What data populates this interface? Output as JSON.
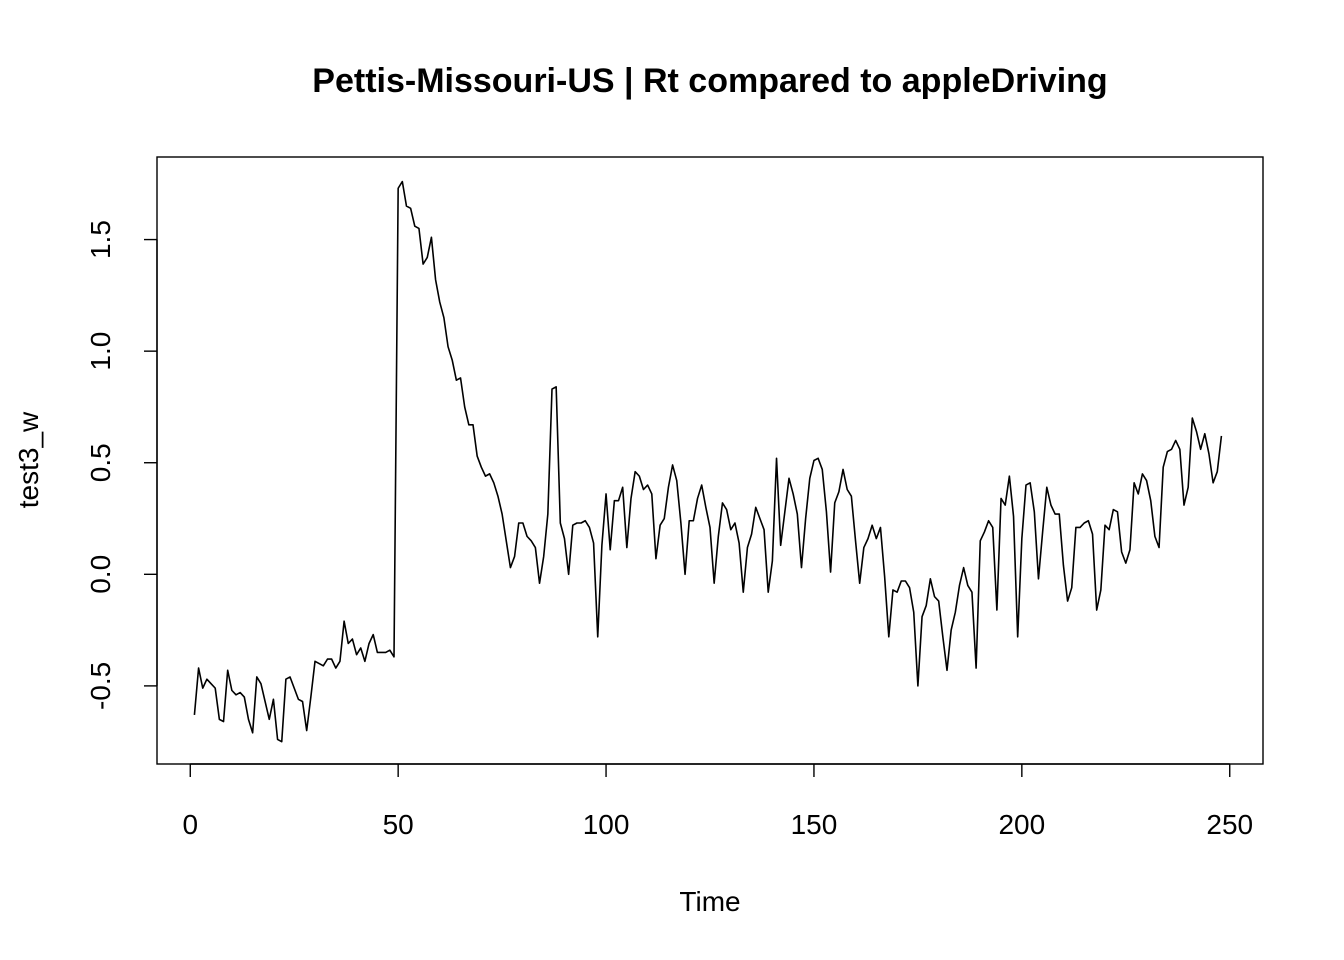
{
  "chart_data": {
    "type": "line",
    "title": "Pettis-Missouri-US | Rt compared to appleDriving",
    "xlabel": "Time",
    "ylabel": "test3_w",
    "xlim": [
      -8,
      258
    ],
    "ylim": [
      -0.85,
      1.87
    ],
    "x_ticks": [
      0,
      50,
      100,
      150,
      200,
      250
    ],
    "y_ticks": [
      -0.5,
      0.0,
      0.5,
      1.0,
      1.5
    ],
    "x_tick_labels": [
      "0",
      "50",
      "100",
      "150",
      "200",
      "250"
    ],
    "y_tick_labels": [
      "-0.5",
      "0.0",
      "0.5",
      "1.0",
      "1.5"
    ],
    "grid": false,
    "series": [
      {
        "x_start": 1,
        "color": "#000000",
        "values": [
          -0.63,
          -0.42,
          -0.51,
          -0.47,
          -0.49,
          -0.51,
          -0.65,
          -0.66,
          -0.43,
          -0.52,
          -0.54,
          -0.53,
          -0.55,
          -0.65,
          -0.71,
          -0.46,
          -0.49,
          -0.57,
          -0.65,
          -0.56,
          -0.74,
          -0.75,
          -0.47,
          -0.46,
          -0.51,
          -0.56,
          -0.57,
          -0.7,
          -0.55,
          -0.39,
          -0.4,
          -0.41,
          -0.38,
          -0.38,
          -0.42,
          -0.39,
          -0.21,
          -0.31,
          -0.29,
          -0.36,
          -0.33,
          -0.39,
          -0.31,
          -0.27,
          -0.35,
          -0.35,
          -0.35,
          -0.34,
          -0.37,
          1.73,
          1.76,
          1.65,
          1.64,
          1.56,
          1.55,
          1.39,
          1.42,
          1.51,
          1.32,
          1.22,
          1.15,
          1.02,
          0.96,
          0.87,
          0.88,
          0.75,
          0.67,
          0.67,
          0.53,
          0.48,
          0.44,
          0.45,
          0.41,
          0.35,
          0.27,
          0.15,
          0.03,
          0.08,
          0.23,
          0.23,
          0.17,
          0.15,
          0.12,
          -0.04,
          0.08,
          0.27,
          0.83,
          0.84,
          0.23,
          0.16,
          0.0,
          0.22,
          0.23,
          0.23,
          0.24,
          0.21,
          0.14,
          -0.28,
          0.13,
          0.36,
          0.11,
          0.33,
          0.33,
          0.39,
          0.12,
          0.34,
          0.46,
          0.44,
          0.38,
          0.4,
          0.36,
          0.07,
          0.22,
          0.25,
          0.39,
          0.49,
          0.42,
          0.23,
          0.0,
          0.24,
          0.24,
          0.34,
          0.4,
          0.3,
          0.21,
          -0.04,
          0.17,
          0.32,
          0.29,
          0.2,
          0.23,
          0.14,
          -0.08,
          0.12,
          0.18,
          0.3,
          0.25,
          0.2,
          -0.08,
          0.06,
          0.52,
          0.13,
          0.28,
          0.43,
          0.36,
          0.27,
          0.03,
          0.25,
          0.43,
          0.51,
          0.52,
          0.47,
          0.28,
          0.01,
          0.32,
          0.37,
          0.47,
          0.38,
          0.35,
          0.15,
          -0.04,
          0.12,
          0.16,
          0.22,
          0.16,
          0.21,
          -0.01,
          -0.28,
          -0.07,
          -0.08,
          -0.03,
          -0.03,
          -0.06,
          -0.17,
          -0.5,
          -0.19,
          -0.14,
          -0.02,
          -0.1,
          -0.12,
          -0.28,
          -0.43,
          -0.25,
          -0.17,
          -0.05,
          0.03,
          -0.05,
          -0.08,
          -0.42,
          0.15,
          0.19,
          0.24,
          0.21,
          -0.16,
          0.34,
          0.31,
          0.44,
          0.26,
          -0.28,
          0.16,
          0.4,
          0.41,
          0.28,
          -0.02,
          0.19,
          0.39,
          0.31,
          0.27,
          0.27,
          0.04,
          -0.12,
          -0.06,
          0.21,
          0.21,
          0.23,
          0.24,
          0.18,
          -0.16,
          -0.07,
          0.22,
          0.2,
          0.29,
          0.28,
          0.1,
          0.05,
          0.11,
          0.41,
          0.36,
          0.45,
          0.42,
          0.33,
          0.17,
          0.12,
          0.48,
          0.55,
          0.56,
          0.6,
          0.56,
          0.31,
          0.39,
          0.7,
          0.64,
          0.56,
          0.63,
          0.54,
          0.41,
          0.46,
          0.62
        ]
      }
    ]
  }
}
